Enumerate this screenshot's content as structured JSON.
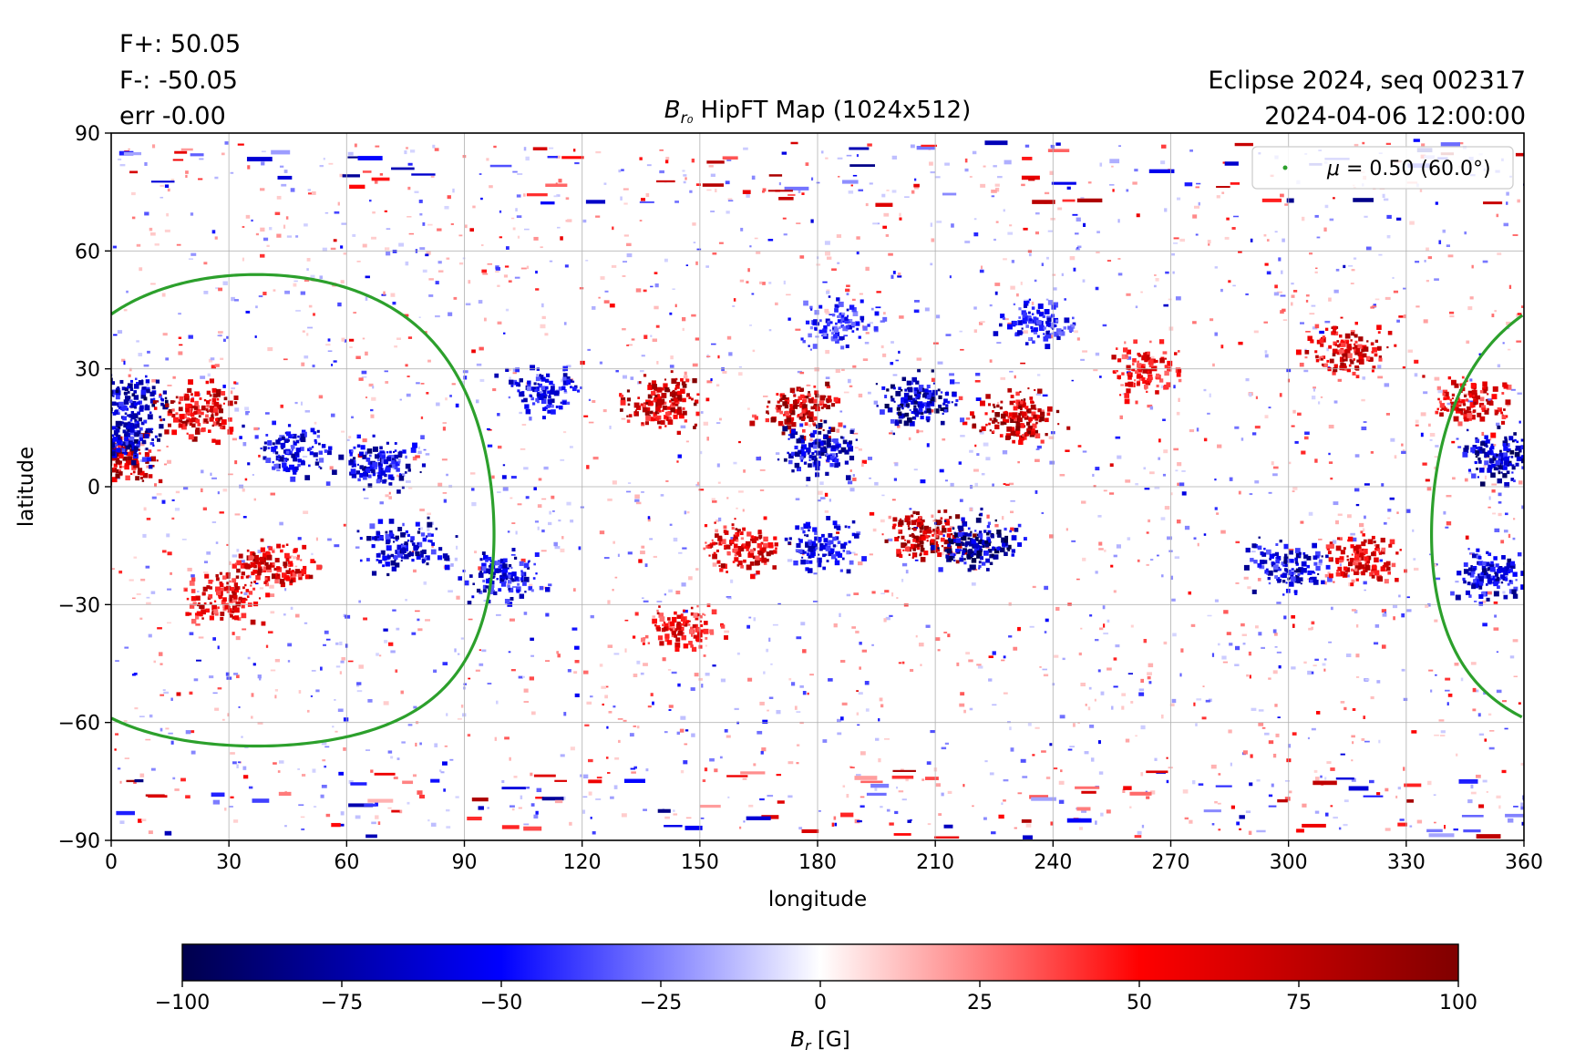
{
  "stats": {
    "fplus": "F+: 50.05",
    "fminus": "F-: -50.05",
    "err": "err -0.00"
  },
  "info": {
    "line1": "Eclipse 2024, seq 002317",
    "line2": "2024-04-06 12:00:00"
  },
  "chart_data": {
    "type": "heatmap",
    "title_prefix": "B",
    "title_sub": "r₀",
    "title_suffix": " HipFT Map (1024x512)",
    "xlabel": "longitude",
    "ylabel": "latitude",
    "xlim": [
      0,
      360
    ],
    "ylim": [
      -90,
      90
    ],
    "xticks": [
      0,
      30,
      60,
      90,
      120,
      150,
      180,
      210,
      240,
      270,
      300,
      330,
      360
    ],
    "yticks": [
      90,
      60,
      30,
      0,
      -30,
      -60,
      -90
    ],
    "ytick_labels": [
      "90",
      "60",
      "30",
      "0",
      "−30",
      "−60",
      "−90"
    ],
    "grid": true,
    "colormap": "seismic",
    "colorbar": {
      "label_prefix": "B",
      "label_sub": "r",
      "label_suffix": " [G]",
      "range": [
        -100,
        100
      ],
      "ticks": [
        -100,
        -75,
        -50,
        -25,
        0,
        25,
        50,
        75,
        100
      ],
      "tick_labels": [
        "−100",
        "−75",
        "−50",
        "−25",
        "0",
        "25",
        "50",
        "75",
        "100"
      ],
      "stops": [
        {
          "value": -100,
          "color": "#00004c"
        },
        {
          "value": -50,
          "color": "#0000ff"
        },
        {
          "value": 0,
          "color": "#ffffff"
        },
        {
          "value": 50,
          "color": "#ff0000"
        },
        {
          "value": 100,
          "color": "#800000"
        }
      ]
    },
    "legend": {
      "label_mu": "μ",
      "label_rest": " = 0.50 (60.0°)",
      "placement": "top-right",
      "color": "#2ca02c"
    },
    "contour": {
      "name": "μ = 0.50 (60.0°)",
      "color": "#2ca02c",
      "observer_lon": 37,
      "observer_lat": -6,
      "angular_radius_deg": 60
    },
    "active_regions": [
      {
        "lon": 3,
        "lat": 22,
        "polarity": "negative",
        "strength": 85
      },
      {
        "lon": 2,
        "lat": 8,
        "polarity": "positive",
        "strength": 90
      },
      {
        "lon": 3,
        "lat": 12,
        "polarity": "negative",
        "strength": 80
      },
      {
        "lon": 22,
        "lat": 20,
        "polarity": "positive",
        "strength": 80
      },
      {
        "lon": 45,
        "lat": 10,
        "polarity": "negative",
        "strength": 70
      },
      {
        "lon": 68,
        "lat": 6,
        "polarity": "negative",
        "strength": 75
      },
      {
        "lon": 40,
        "lat": -20,
        "polarity": "positive",
        "strength": 75
      },
      {
        "lon": 28,
        "lat": -28,
        "polarity": "positive",
        "strength": 70
      },
      {
        "lon": 75,
        "lat": -15,
        "polarity": "negative",
        "strength": 75
      },
      {
        "lon": 100,
        "lat": -22,
        "polarity": "negative",
        "strength": 70
      },
      {
        "lon": 140,
        "lat": 22,
        "polarity": "positive",
        "strength": 85
      },
      {
        "lon": 110,
        "lat": 25,
        "polarity": "negative",
        "strength": 65
      },
      {
        "lon": 175,
        "lat": 20,
        "polarity": "positive",
        "strength": 85
      },
      {
        "lon": 180,
        "lat": 10,
        "polarity": "negative",
        "strength": 75
      },
      {
        "lon": 205,
        "lat": 22,
        "polarity": "negative",
        "strength": 85
      },
      {
        "lon": 230,
        "lat": 18,
        "polarity": "positive",
        "strength": 90
      },
      {
        "lon": 207,
        "lat": -12,
        "polarity": "positive",
        "strength": 90
      },
      {
        "lon": 220,
        "lat": -14,
        "polarity": "negative",
        "strength": 95
      },
      {
        "lon": 160,
        "lat": -15,
        "polarity": "positive",
        "strength": 75
      },
      {
        "lon": 145,
        "lat": -35,
        "polarity": "positive",
        "strength": 65
      },
      {
        "lon": 180,
        "lat": -15,
        "polarity": "negative",
        "strength": 65
      },
      {
        "lon": 315,
        "lat": 35,
        "polarity": "positive",
        "strength": 75
      },
      {
        "lon": 262,
        "lat": 30,
        "polarity": "positive",
        "strength": 65
      },
      {
        "lon": 300,
        "lat": -20,
        "polarity": "negative",
        "strength": 75
      },
      {
        "lon": 318,
        "lat": -18,
        "polarity": "positive",
        "strength": 70
      },
      {
        "lon": 354,
        "lat": 8,
        "polarity": "negative",
        "strength": 85
      },
      {
        "lon": 352,
        "lat": -22,
        "polarity": "negative",
        "strength": 75
      },
      {
        "lon": 345,
        "lat": 22,
        "polarity": "positive",
        "strength": 70
      },
      {
        "lon": 235,
        "lat": 42,
        "polarity": "negative",
        "strength": 60
      },
      {
        "lon": 185,
        "lat": 42,
        "polarity": "negative",
        "strength": 55
      }
    ]
  }
}
